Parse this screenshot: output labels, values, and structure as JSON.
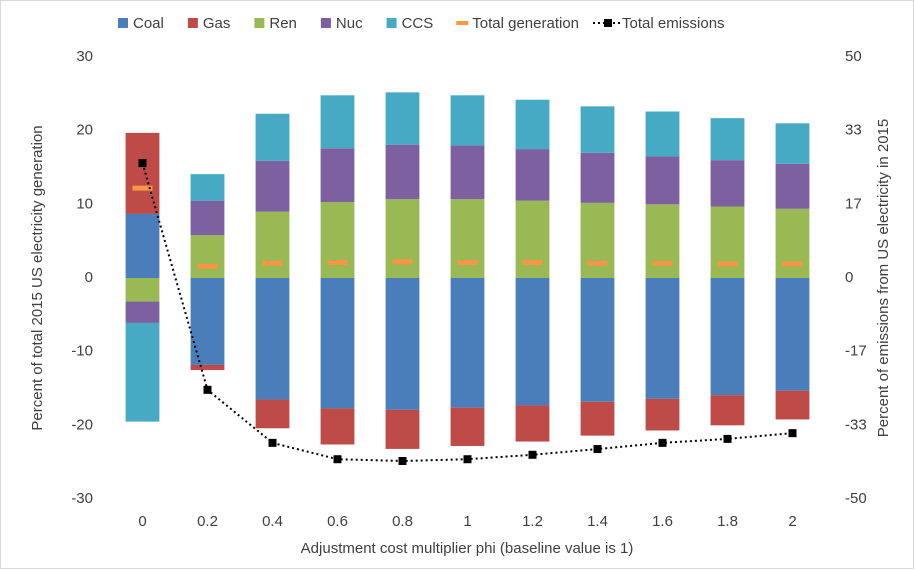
{
  "chart_data": {
    "type": "bar",
    "stacked": true,
    "categories": [
      "0",
      "0.2",
      "0.4",
      "0.6",
      "0.8",
      "1",
      "1.2",
      "1.4",
      "1.6",
      "1.8",
      "2"
    ],
    "series": [
      {
        "name": "Coal",
        "color": "#4a7ebb",
        "kind": "bar",
        "values": [
          8.7,
          -11.8,
          -16.5,
          -17.7,
          -17.9,
          -17.6,
          -17.3,
          -16.8,
          -16.4,
          -15.9,
          -15.3
        ]
      },
      {
        "name": "Gas",
        "color": "#be4b48",
        "kind": "bar",
        "values": [
          11.0,
          -0.7,
          -3.9,
          -4.9,
          -5.3,
          -5.2,
          -4.9,
          -4.6,
          -4.3,
          -4.1,
          -3.9
        ]
      },
      {
        "name": "Ren",
        "color": "#98b954",
        "kind": "bar",
        "values": [
          -3.2,
          5.8,
          9.0,
          10.3,
          10.7,
          10.7,
          10.5,
          10.2,
          10.0,
          9.7,
          9.4
        ]
      },
      {
        "name": "Nuc",
        "color": "#7d60a0",
        "kind": "bar",
        "values": [
          -2.9,
          4.7,
          6.9,
          7.3,
          7.4,
          7.3,
          7.0,
          6.8,
          6.5,
          6.3,
          6.1
        ]
      },
      {
        "name": "CCS",
        "color": "#46aac5",
        "kind": "bar",
        "values": [
          -13.4,
          3.6,
          6.4,
          7.2,
          7.1,
          6.8,
          6.7,
          6.3,
          6.1,
          5.7,
          5.5
        ]
      },
      {
        "name": "Total generation",
        "color": "#f79646",
        "kind": "dash",
        "values": [
          12.2,
          1.6,
          2.0,
          2.1,
          2.2,
          2.1,
          2.1,
          2.0,
          2.0,
          1.9,
          1.9
        ]
      },
      {
        "name": "Total emissions",
        "color": "#000000",
        "kind": "line",
        "axis": "y2",
        "values": [
          26.0,
          -25.3,
          -37.3,
          -41.0,
          -41.4,
          -41.0,
          -40.0,
          -38.7,
          -37.3,
          -36.4,
          -35.1
        ]
      }
    ],
    "ylabel": "Percent of total 2015 US electricity generation",
    "y2label": "Percent of emissions from US electricity in 2015",
    "xlabel": "Adjustment cost multiplier phi (baseline value is 1)",
    "ylim": [
      -30,
      30
    ],
    "yticks": [
      -30,
      -20,
      -10,
      0,
      10,
      20,
      30
    ],
    "y2lim": [
      -50,
      50
    ],
    "y2ticks": [
      -50,
      {
        "value": -33.333,
        "label": "-33"
      },
      {
        "value": -16.667,
        "label": "-17"
      },
      0,
      {
        "value": 16.667,
        "label": "17"
      },
      {
        "value": 33.333,
        "label": "33"
      },
      50
    ],
    "grid": false,
    "legend": "top"
  }
}
